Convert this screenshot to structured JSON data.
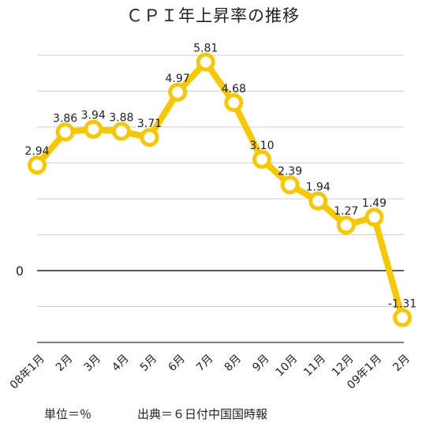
{
  "chart_data": {
    "type": "line",
    "title": "ＣＰＩ年上昇率の推移",
    "categories": [
      "08年1月",
      "2月",
      "3月",
      "4月",
      "5月",
      "6月",
      "7月",
      "8月",
      "9月",
      "10月",
      "11月",
      "12月",
      "09年1月",
      "2月"
    ],
    "series": [
      {
        "values": [
          2.94,
          3.86,
          3.94,
          3.88,
          3.71,
          4.97,
          5.81,
          4.68,
          3.1,
          2.39,
          1.94,
          1.27,
          1.49,
          -1.31
        ]
      }
    ],
    "data_labels": [
      "2.94",
      "3.86",
      "3.94",
      "3.88",
      "3.71",
      "4.97",
      "5.81",
      "4.68",
      "3.10",
      "2.39",
      "1.94",
      "1.27",
      "1.49",
      "-1.31"
    ],
    "ylim": [
      -2,
      6
    ],
    "zero_label": "0",
    "grid": true,
    "line_color": "#F5C800",
    "unit_note": "単位＝％",
    "source_note": "出典＝６日付中国国時報"
  }
}
